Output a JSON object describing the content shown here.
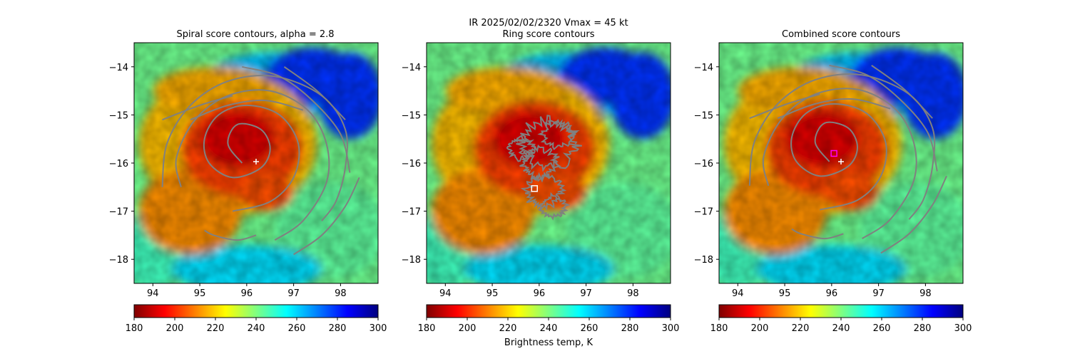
{
  "suptitle": "IR  2025/02/02/2320    Vmax = 45 kt",
  "colorbar_label": "Brightness temp, K",
  "colorbar": {
    "range": [
      180,
      300
    ],
    "ticks": [
      180,
      200,
      220,
      240,
      260,
      280,
      300
    ],
    "colormap": "jet",
    "colors": [
      "#7f0000",
      "#ff0000",
      "#ff8000",
      "#ffff00",
      "#80ff80",
      "#00ffff",
      "#0080ff",
      "#0000ff",
      "#000080"
    ]
  },
  "contour_color": "#808080",
  "chart_data": [
    {
      "type": "heatmap",
      "title": "Spiral score contours, alpha =  2.8",
      "xlim": [
        93.6,
        98.8
      ],
      "ylim": [
        -18.5,
        -13.5
      ],
      "xticks": [
        94,
        95,
        96,
        97,
        98
      ],
      "yticks": [
        -14,
        -15,
        -16,
        -17,
        -18
      ],
      "overlay": "spiral score contours",
      "markers": [
        {
          "shape": "plus",
          "lon": 96.2,
          "lat": -15.97,
          "color": "#ffffff"
        }
      ]
    },
    {
      "type": "heatmap",
      "title": "Ring score contours",
      "xlim": [
        93.6,
        98.8
      ],
      "ylim": [
        -18.5,
        -13.5
      ],
      "xticks": [
        94,
        95,
        96,
        97,
        98
      ],
      "yticks": [
        -14,
        -15,
        -16,
        -17,
        -18
      ],
      "overlay": "ring score contours",
      "markers": [
        {
          "shape": "square",
          "lon": 95.9,
          "lat": -16.53,
          "color": "#ffffff"
        }
      ]
    },
    {
      "type": "heatmap",
      "title": "Combined score contours",
      "xlim": [
        93.6,
        98.8
      ],
      "ylim": [
        -18.5,
        -13.5
      ],
      "xticks": [
        94,
        95,
        96,
        97,
        98
      ],
      "yticks": [
        -14,
        -15,
        -16,
        -17,
        -18
      ],
      "overlay": "combined score contours",
      "markers": [
        {
          "shape": "square",
          "lon": 96.05,
          "lat": -15.8,
          "color": "#ff00ff"
        },
        {
          "shape": "plus",
          "lon": 96.2,
          "lat": -15.97,
          "color": "#ffffff"
        }
      ]
    }
  ]
}
